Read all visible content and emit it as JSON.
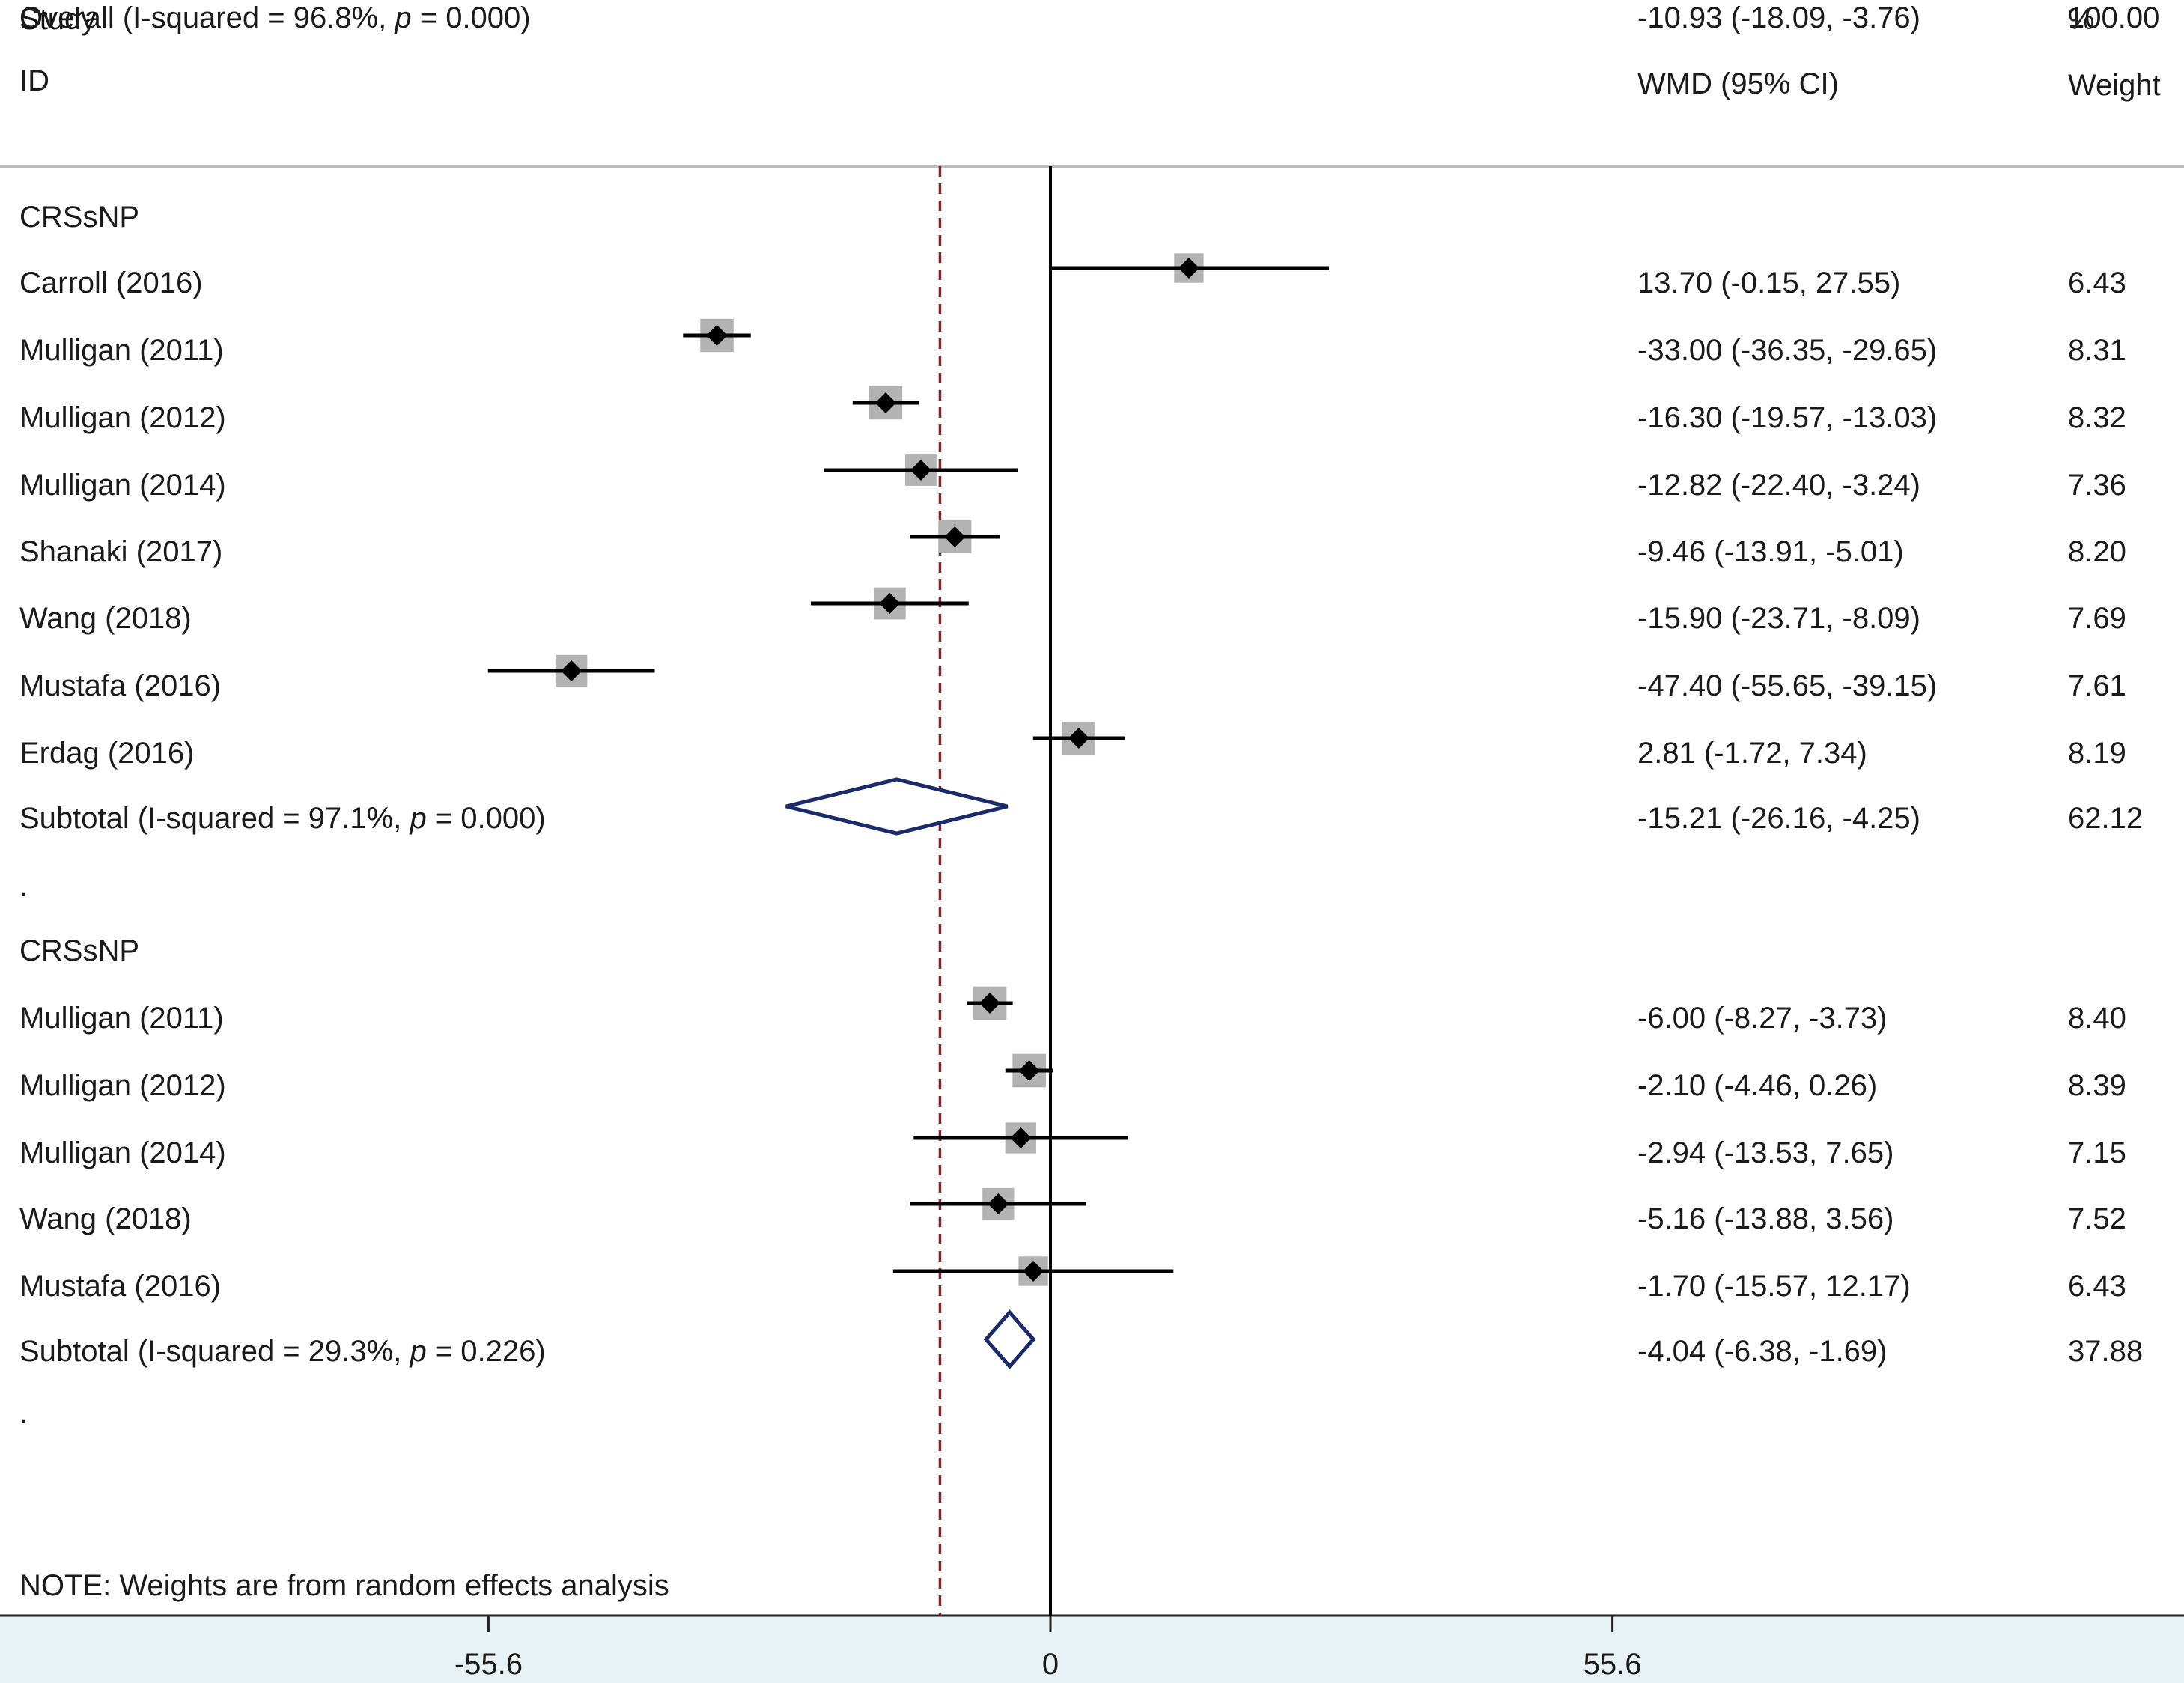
{
  "header": {
    "study": "Study",
    "id": "ID",
    "effect": "WMD (95% CI)",
    "pct": "%",
    "weight": "Weight"
  },
  "note": "NOTE: Weights are from random effects analysis",
  "chart_data": {
    "type": "forest",
    "effect_measure": "WMD (95% CI)",
    "null_value": 0,
    "overall_reference": -10.93,
    "x_ticks": [
      {
        "value": -55.6,
        "label": "-55.6"
      },
      {
        "value": 0,
        "label": "0"
      },
      {
        "value": 55.6,
        "label": "55.6"
      }
    ],
    "rows": [
      {
        "kind": "group",
        "label": "CRSsNP"
      },
      {
        "kind": "study",
        "label": "Carroll (2016)",
        "est": 13.7,
        "lo": -0.15,
        "hi": 27.55,
        "ci_text": "13.70 (-0.15, 27.55)",
        "weight": "6.43"
      },
      {
        "kind": "study",
        "label": "Mulligan (2011)",
        "est": -33.0,
        "lo": -36.35,
        "hi": -29.65,
        "ci_text": "-33.00 (-36.35, -29.65)",
        "weight": "8.31"
      },
      {
        "kind": "study",
        "label": "Mulligan (2012)",
        "est": -16.3,
        "lo": -19.57,
        "hi": -13.03,
        "ci_text": "-16.30 (-19.57, -13.03)",
        "weight": "8.32"
      },
      {
        "kind": "study",
        "label": "Mulligan (2014)",
        "est": -12.82,
        "lo": -22.4,
        "hi": -3.24,
        "ci_text": "-12.82 (-22.40, -3.24)",
        "weight": "7.36"
      },
      {
        "kind": "study",
        "label": "Shanaki (2017)",
        "est": -9.46,
        "lo": -13.91,
        "hi": -5.01,
        "ci_text": "-9.46 (-13.91, -5.01)",
        "weight": "8.20"
      },
      {
        "kind": "study",
        "label": "Wang (2018)",
        "est": -15.9,
        "lo": -23.71,
        "hi": -8.09,
        "ci_text": "-15.90 (-23.71, -8.09)",
        "weight": "7.69"
      },
      {
        "kind": "study",
        "label": "Mustafa (2016)",
        "est": -47.4,
        "lo": -55.65,
        "hi": -39.15,
        "ci_text": "-47.40 (-55.65, -39.15)",
        "weight": "7.61"
      },
      {
        "kind": "study",
        "label": "Erdag (2016)",
        "est": 2.81,
        "lo": -1.72,
        "hi": 7.34,
        "ci_text": "2.81 (-1.72, 7.34)",
        "weight": "8.19"
      },
      {
        "kind": "subtotal",
        "label_pre": "Subtotal (I-squared = 97.1%, ",
        "label_p": "p",
        "label_post": " = 0.000)",
        "est": -15.21,
        "lo": -26.16,
        "hi": -4.25,
        "ci_text": "-15.21 (-26.16, -4.25)",
        "weight": "62.12"
      },
      {
        "kind": "spacer",
        "label": "."
      },
      {
        "kind": "group",
        "label": "CRSsNP"
      },
      {
        "kind": "study",
        "label": "Mulligan (2011)",
        "est": -6.0,
        "lo": -8.27,
        "hi": -3.73,
        "ci_text": "-6.00 (-8.27, -3.73)",
        "weight": "8.40"
      },
      {
        "kind": "study",
        "label": "Mulligan (2012)",
        "est": -2.1,
        "lo": -4.46,
        "hi": 0.26,
        "ci_text": "-2.10 (-4.46, 0.26)",
        "weight": "8.39"
      },
      {
        "kind": "study",
        "label": "Mulligan (2014)",
        "est": -2.94,
        "lo": -13.53,
        "hi": 7.65,
        "ci_text": "-2.94 (-13.53, 7.65)",
        "weight": "7.15"
      },
      {
        "kind": "study",
        "label": "Wang (2018)",
        "est": -5.16,
        "lo": -13.88,
        "hi": 3.56,
        "ci_text": "-5.16 (-13.88, 3.56)",
        "weight": "7.52"
      },
      {
        "kind": "study",
        "label": "Mustafa (2016)",
        "est": -1.7,
        "lo": -15.57,
        "hi": 12.17,
        "ci_text": "-1.70 (-15.57, 12.17)",
        "weight": "6.43"
      },
      {
        "kind": "subtotal",
        "label_pre": "Subtotal (I-squared = 29.3%, ",
        "label_p": "p",
        "label_post": " = 0.226)",
        "est": -4.04,
        "lo": -6.38,
        "hi": -1.69,
        "ci_text": "-4.04 (-6.38, -1.69)",
        "weight": "37.88"
      },
      {
        "kind": "spacer",
        "label": "."
      },
      {
        "kind": "overall",
        "label_pre": "Overall (I-squared = 96.8%, ",
        "label_p": "p",
        "label_post": " = 0.000)",
        "est": -10.93,
        "lo": -18.09,
        "hi": -3.76,
        "ci_text": "-10.93 (-18.09, -3.76)",
        "weight": "100.00"
      }
    ]
  },
  "colors": {
    "background": "#ffffff",
    "axis_band": "#e8f1f4",
    "ci_line": "#000000",
    "study_marker": "#000000",
    "weight_box": "#b3b3b3",
    "summary_diamond": "#1b2a6b",
    "reference_line": "#7a2a2a",
    "divider": "#bdbdbd"
  }
}
